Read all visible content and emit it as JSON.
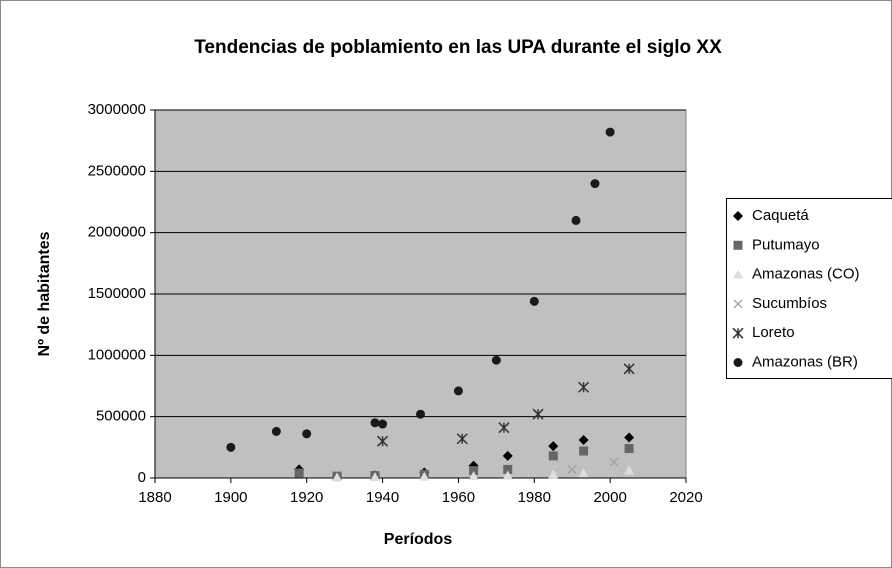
{
  "chart_data": {
    "type": "scatter",
    "title": "Tendencias de poblamiento en las UPA durante el siglo XX",
    "xlabel": "Períodos",
    "ylabel": "Nº de habitantes",
    "xlim": [
      1880,
      2020
    ],
    "xticks": [
      1880,
      1900,
      1920,
      1940,
      1960,
      1980,
      2000,
      2020
    ],
    "ylim": [
      0,
      3000000
    ],
    "yticks": [
      0,
      500000,
      1000000,
      1500000,
      2000000,
      2500000,
      3000000
    ],
    "grid": true,
    "legend": "right",
    "series": [
      {
        "name": "Caquetá",
        "color": "#000000",
        "marker": "diamond",
        "x": [
          1918,
          1928,
          1938,
          1951,
          1964,
          1973,
          1985,
          1993,
          2005
        ],
        "values": [
          70000,
          10000,
          20000,
          45000,
          100000,
          180000,
          260000,
          310000,
          330000
        ]
      },
      {
        "name": "Putumayo",
        "color": "#666666",
        "marker": "square",
        "x": [
          1918,
          1928,
          1938,
          1951,
          1964,
          1973,
          1985,
          1993,
          2005
        ],
        "values": [
          40000,
          15000,
          20000,
          30000,
          60000,
          70000,
          180000,
          220000,
          240000
        ]
      },
      {
        "name": "Amazonas (CO)",
        "color": "#dddddd",
        "marker": "triangle",
        "x": [
          1928,
          1938,
          1951,
          1964,
          1973,
          1985,
          1993,
          2005
        ],
        "values": [
          5000,
          7000,
          10000,
          15000,
          20000,
          30000,
          40000,
          60000
        ]
      },
      {
        "name": "Sucumbíos",
        "color": "#a0a0a0",
        "marker": "x",
        "x": [
          1990,
          2001
        ],
        "values": [
          70000,
          130000
        ]
      },
      {
        "name": "Loreto",
        "color": "#333333",
        "marker": "star",
        "x": [
          1940,
          1961,
          1972,
          1981,
          1993,
          2005
        ],
        "values": [
          300000,
          320000,
          410000,
          520000,
          740000,
          890000
        ]
      },
      {
        "name": "Amazonas (BR)",
        "color": "#1a1a1a",
        "marker": "circle",
        "x": [
          1900,
          1912,
          1920,
          1938,
          1940,
          1950,
          1960,
          1970,
          1980,
          1991,
          1996,
          2000
        ],
        "values": [
          250000,
          380000,
          360000,
          450000,
          440000,
          520000,
          710000,
          960000,
          1440000,
          2100000,
          2400000,
          2820000
        ]
      }
    ]
  }
}
